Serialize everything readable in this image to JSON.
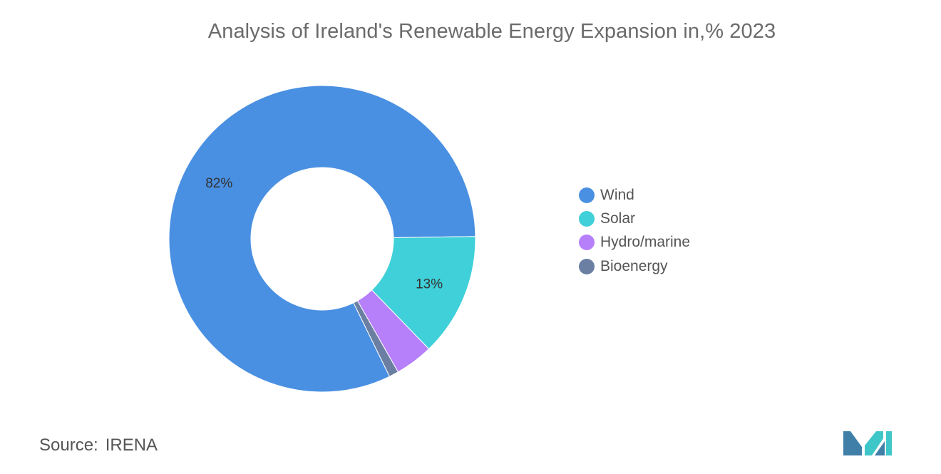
{
  "title": "Analysis of Ireland's Renewable Energy Expansion in,% 2023",
  "source": {
    "label": "Source:",
    "value": "IRENA"
  },
  "chart_data": {
    "type": "pie",
    "donut": true,
    "title": "Analysis of Ireland's Renewable Energy Expansion in,% 2023",
    "categories": [
      "Wind",
      "Solar",
      "Hydro/marine",
      "Bioenergy"
    ],
    "values": [
      82,
      13,
      4,
      1
    ],
    "data_labels": [
      "82%",
      "13%",
      "",
      ""
    ],
    "colors": [
      "#4a90e2",
      "#3fd0d9",
      "#b580f9",
      "#6b7fa3"
    ],
    "legend_position": "right"
  },
  "colors": {
    "title": "#6b6b6b",
    "logo_left": "#3f7fa8",
    "logo_right": "#3fc6c8"
  }
}
